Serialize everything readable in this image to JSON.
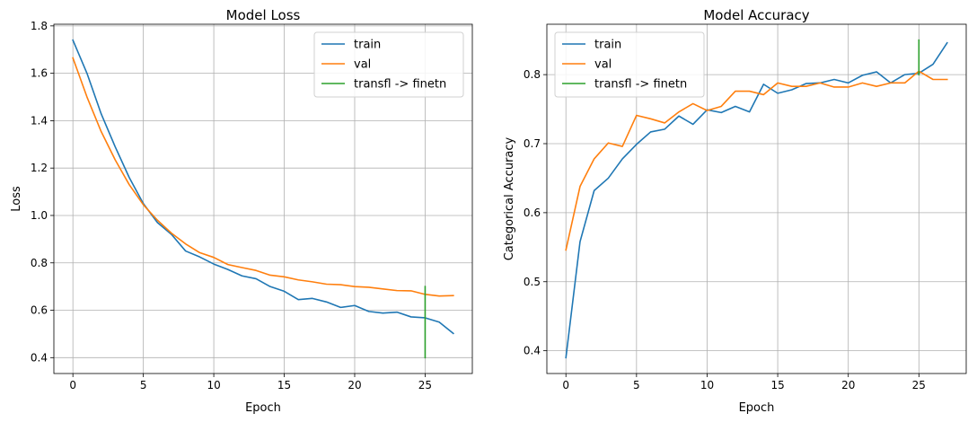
{
  "chart_data": [
    {
      "type": "line",
      "title": "Model Loss",
      "xlabel": "Epoch",
      "ylabel": "Loss",
      "xlim": [
        -1.35,
        28.35
      ],
      "ylim": [
        0.333,
        1.807
      ],
      "xticks": [
        0,
        5,
        10,
        15,
        20,
        25
      ],
      "yticks": [
        0.4,
        0.6,
        0.8,
        1.0,
        1.2,
        1.4,
        1.6,
        1.8
      ],
      "xtick_labels": [
        "0",
        "5",
        "10",
        "15",
        "20",
        "25"
      ],
      "ytick_labels": [
        "0.4",
        "0.6",
        "0.8",
        "1.0",
        "1.2",
        "1.4",
        "1.6",
        "1.8"
      ],
      "grid": true,
      "legend_position": "top-right",
      "series": [
        {
          "name": "train",
          "color": "#1f77b4",
          "x": [
            0,
            1,
            2,
            3,
            4,
            5,
            6,
            7,
            8,
            9,
            10,
            11,
            12,
            13,
            14,
            15,
            16,
            17,
            18,
            19,
            20,
            21,
            22,
            23,
            24,
            25,
            26,
            27
          ],
          "y": [
            1.74,
            1.6,
            1.43,
            1.29,
            1.16,
            1.05,
            0.97,
            0.92,
            0.85,
            0.825,
            0.795,
            0.772,
            0.745,
            0.733,
            0.7,
            0.68,
            0.645,
            0.65,
            0.635,
            0.612,
            0.62,
            0.595,
            0.588,
            0.592,
            0.572,
            0.568,
            0.55,
            0.502
          ]
        },
        {
          "name": "val",
          "color": "#ff7f0e",
          "x": [
            0,
            1,
            2,
            3,
            4,
            5,
            6,
            7,
            8,
            9,
            10,
            11,
            12,
            13,
            14,
            15,
            16,
            17,
            18,
            19,
            20,
            21,
            22,
            23,
            24,
            25,
            26,
            27
          ],
          "y": [
            1.665,
            1.5,
            1.355,
            1.235,
            1.13,
            1.045,
            0.98,
            0.925,
            0.88,
            0.843,
            0.823,
            0.793,
            0.78,
            0.768,
            0.748,
            0.741,
            0.728,
            0.72,
            0.71,
            0.708,
            0.7,
            0.697,
            0.69,
            0.683,
            0.682,
            0.667,
            0.66,
            0.662
          ]
        },
        {
          "name": "transfl -> finetn",
          "color": "#2ca02c",
          "x": [
            25,
            25
          ],
          "y": [
            0.4,
            0.7
          ]
        }
      ]
    },
    {
      "type": "line",
      "title": "Model Accuracy",
      "xlabel": "Epoch",
      "ylabel": "Categorical Accuracy",
      "xlim": [
        -1.35,
        28.35
      ],
      "ylim": [
        0.367,
        0.873
      ],
      "xticks": [
        0,
        5,
        10,
        15,
        20,
        25
      ],
      "yticks": [
        0.4,
        0.5,
        0.6,
        0.7,
        0.8
      ],
      "xtick_labels": [
        "0",
        "5",
        "10",
        "15",
        "20",
        "25"
      ],
      "ytick_labels": [
        "0.4",
        "0.5",
        "0.6",
        "0.7",
        "0.8"
      ],
      "grid": true,
      "legend_position": "top-left",
      "series": [
        {
          "name": "train",
          "color": "#1f77b4",
          "x": [
            0,
            1,
            2,
            3,
            4,
            5,
            6,
            7,
            8,
            9,
            10,
            11,
            12,
            13,
            14,
            15,
            16,
            17,
            18,
            19,
            20,
            21,
            22,
            23,
            24,
            25,
            26,
            27
          ],
          "y": [
            0.39,
            0.558,
            0.632,
            0.65,
            0.678,
            0.699,
            0.717,
            0.721,
            0.74,
            0.728,
            0.749,
            0.745,
            0.754,
            0.746,
            0.786,
            0.773,
            0.778,
            0.787,
            0.788,
            0.793,
            0.788,
            0.799,
            0.804,
            0.788,
            0.8,
            0.802,
            0.815,
            0.846
          ]
        },
        {
          "name": "val",
          "color": "#ff7f0e",
          "x": [
            0,
            1,
            2,
            3,
            4,
            5,
            6,
            7,
            8,
            9,
            10,
            11,
            12,
            13,
            14,
            15,
            16,
            17,
            18,
            19,
            20,
            21,
            22,
            23,
            24,
            25,
            26,
            27
          ],
          "y": [
            0.546,
            0.638,
            0.678,
            0.701,
            0.696,
            0.741,
            0.736,
            0.73,
            0.746,
            0.758,
            0.748,
            0.754,
            0.776,
            0.776,
            0.771,
            0.788,
            0.783,
            0.783,
            0.788,
            0.782,
            0.782,
            0.788,
            0.783,
            0.788,
            0.788,
            0.805,
            0.793,
            0.793
          ]
        },
        {
          "name": "transfl -> finetn",
          "color": "#2ca02c",
          "x": [
            25,
            25
          ],
          "y": [
            0.8,
            0.85
          ]
        }
      ]
    }
  ]
}
